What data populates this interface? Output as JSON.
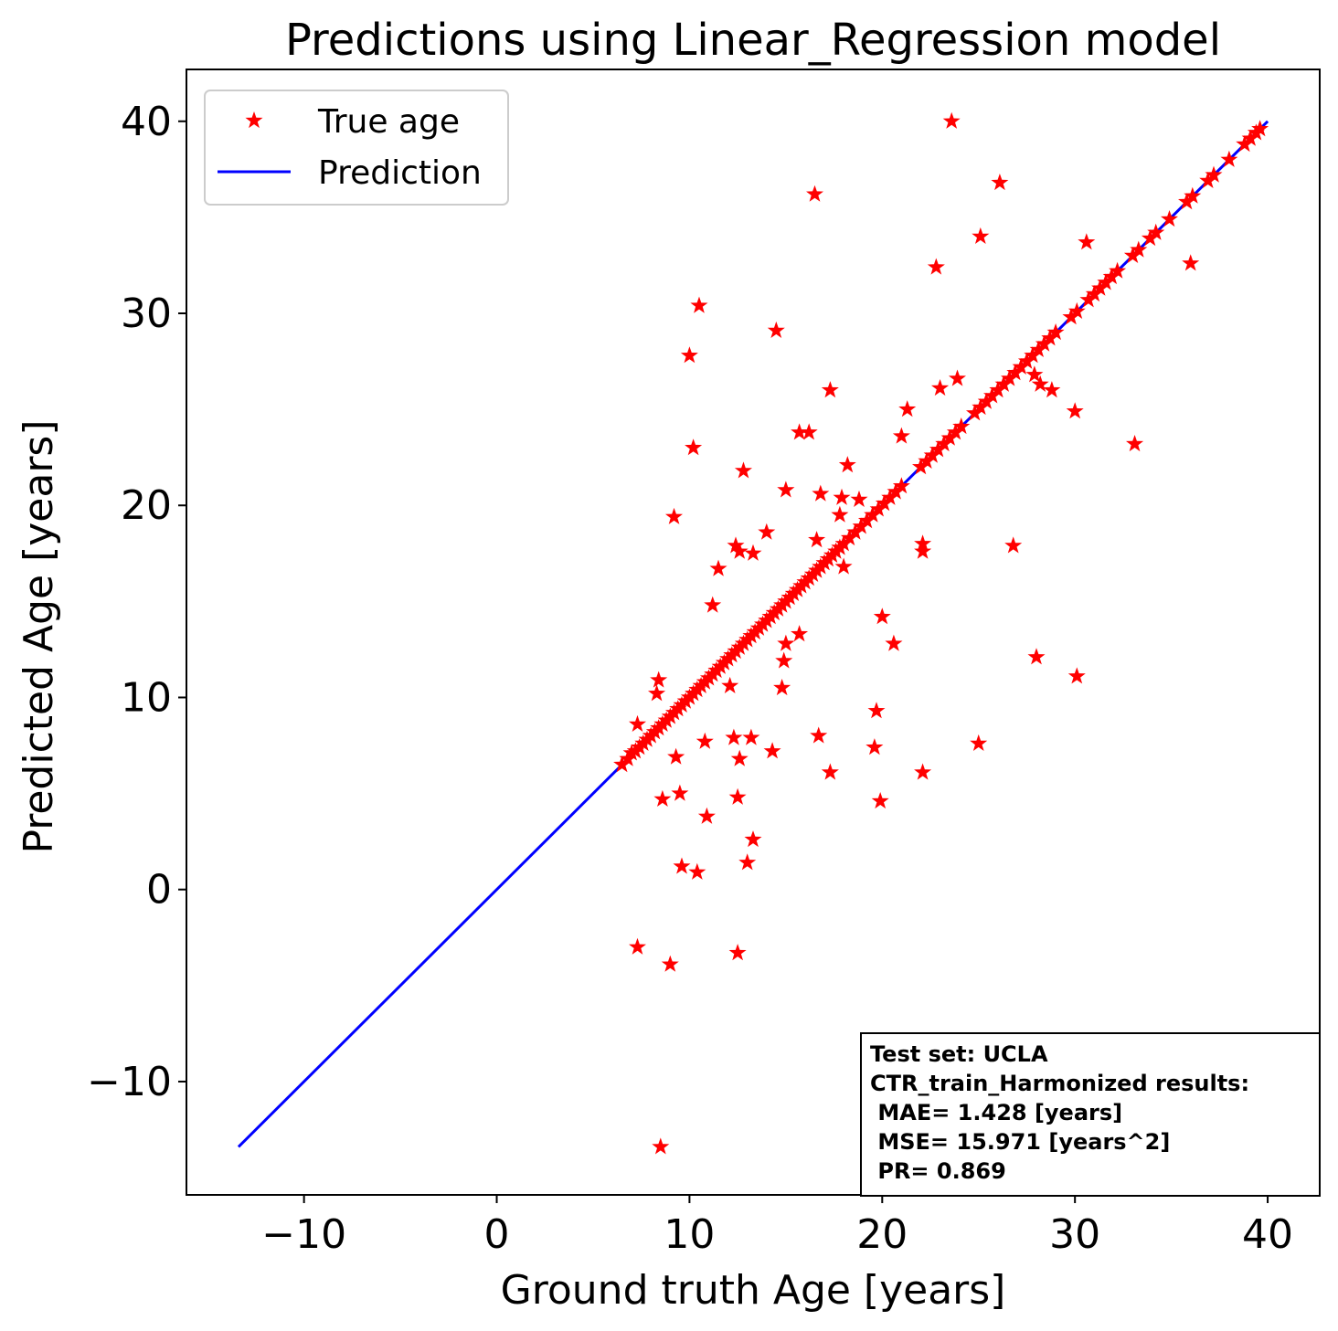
{
  "chart_data": {
    "type": "scatter",
    "title": "Predictions using Linear_Regression model",
    "xlabel": "Ground truth Age [years]",
    "ylabel": "Predicted Age [years]",
    "xlim": [
      -16.1,
      42.7
    ],
    "ylim": [
      -15.9,
      42.7
    ],
    "xticks": [
      -10,
      0,
      10,
      20,
      30,
      40
    ],
    "yticks": [
      -10,
      0,
      10,
      20,
      30,
      40
    ],
    "xtick_labels": [
      "−10",
      "0",
      "10",
      "20",
      "30",
      "40"
    ],
    "ytick_labels": [
      "−10",
      "0",
      "10",
      "20",
      "30",
      "40"
    ],
    "grid": false,
    "legend": {
      "position": "top-left",
      "entries": [
        {
          "label": "True age",
          "marker": "star",
          "color": "#ff0000"
        },
        {
          "label": "Prediction",
          "marker": "line",
          "color": "#0000ff"
        }
      ]
    },
    "colors": {
      "points": "#ff0000",
      "line": "#0000ff"
    },
    "series": [
      {
        "name": "True age",
        "kind": "scatter",
        "points": [
          [
            6.5,
            6.5
          ],
          [
            6.8,
            6.8
          ],
          [
            7.0,
            7.1
          ],
          [
            7.2,
            7.2
          ],
          [
            7.4,
            7.4
          ],
          [
            7.6,
            7.6
          ],
          [
            7.8,
            7.8
          ],
          [
            8.0,
            8.0
          ],
          [
            8.2,
            8.2
          ],
          [
            8.4,
            8.4
          ],
          [
            8.6,
            8.6
          ],
          [
            8.8,
            8.8
          ],
          [
            9.0,
            9.0
          ],
          [
            9.2,
            9.2
          ],
          [
            9.4,
            9.4
          ],
          [
            9.6,
            9.6
          ],
          [
            9.8,
            9.8
          ],
          [
            10.0,
            10.0
          ],
          [
            10.2,
            10.2
          ],
          [
            10.4,
            10.4
          ],
          [
            10.6,
            10.6
          ],
          [
            10.8,
            10.8
          ],
          [
            11.0,
            11.0
          ],
          [
            11.2,
            11.2
          ],
          [
            11.4,
            11.4
          ],
          [
            11.6,
            11.6
          ],
          [
            11.8,
            11.8
          ],
          [
            12.0,
            12.0
          ],
          [
            12.2,
            12.2
          ],
          [
            12.4,
            12.4
          ],
          [
            12.6,
            12.6
          ],
          [
            12.8,
            12.8
          ],
          [
            13.0,
            13.0
          ],
          [
            13.2,
            13.2
          ],
          [
            13.4,
            13.4
          ],
          [
            13.6,
            13.6
          ],
          [
            13.8,
            13.8
          ],
          [
            14.0,
            14.0
          ],
          [
            14.2,
            14.2
          ],
          [
            14.4,
            14.4
          ],
          [
            14.6,
            14.6
          ],
          [
            14.8,
            14.8
          ],
          [
            15.0,
            15.0
          ],
          [
            15.2,
            15.2
          ],
          [
            15.4,
            15.4
          ],
          [
            15.6,
            15.6
          ],
          [
            15.8,
            15.8
          ],
          [
            16.0,
            16.0
          ],
          [
            16.2,
            16.2
          ],
          [
            16.4,
            16.4
          ],
          [
            16.6,
            16.6
          ],
          [
            16.8,
            16.8
          ],
          [
            17.0,
            17.0
          ],
          [
            17.2,
            17.2
          ],
          [
            17.4,
            17.4
          ],
          [
            17.6,
            17.6
          ],
          [
            17.8,
            17.8
          ],
          [
            18.0,
            18.0
          ],
          [
            18.3,
            18.3
          ],
          [
            18.6,
            18.6
          ],
          [
            18.9,
            18.9
          ],
          [
            19.2,
            19.2
          ],
          [
            19.5,
            19.5
          ],
          [
            19.8,
            19.8
          ],
          [
            20.1,
            20.1
          ],
          [
            20.4,
            20.4
          ],
          [
            20.7,
            20.7
          ],
          [
            21.0,
            21.0
          ],
          [
            22.0,
            22.0
          ],
          [
            22.3,
            22.3
          ],
          [
            22.6,
            22.6
          ],
          [
            22.9,
            22.9
          ],
          [
            23.2,
            23.2
          ],
          [
            23.5,
            23.5
          ],
          [
            23.8,
            23.8
          ],
          [
            24.1,
            24.1
          ],
          [
            24.8,
            24.8
          ],
          [
            25.1,
            25.1
          ],
          [
            25.4,
            25.4
          ],
          [
            25.7,
            25.7
          ],
          [
            26.0,
            26.0
          ],
          [
            26.3,
            26.3
          ],
          [
            26.6,
            26.6
          ],
          [
            26.9,
            26.9
          ],
          [
            27.2,
            27.2
          ],
          [
            27.5,
            27.5
          ],
          [
            27.8,
            27.8
          ],
          [
            28.1,
            28.1
          ],
          [
            28.4,
            28.4
          ],
          [
            28.7,
            28.7
          ],
          [
            29.0,
            29.0
          ],
          [
            29.8,
            29.8
          ],
          [
            30.1,
            30.1
          ],
          [
            30.7,
            30.7
          ],
          [
            31.0,
            31.0
          ],
          [
            31.3,
            31.3
          ],
          [
            31.6,
            31.6
          ],
          [
            31.9,
            31.9
          ],
          [
            32.2,
            32.2
          ],
          [
            33.0,
            33.0
          ],
          [
            33.3,
            33.3
          ],
          [
            33.9,
            33.9
          ],
          [
            34.2,
            34.2
          ],
          [
            34.9,
            34.9
          ],
          [
            35.8,
            35.8
          ],
          [
            36.1,
            36.1
          ],
          [
            36.9,
            36.9
          ],
          [
            37.2,
            37.2
          ],
          [
            38.0,
            38.0
          ],
          [
            38.8,
            38.8
          ],
          [
            39.1,
            39.1
          ],
          [
            39.4,
            39.4
          ],
          [
            39.6,
            39.6
          ],
          [
            7.3,
            8.6
          ],
          [
            8.3,
            10.2
          ],
          [
            8.4,
            10.9
          ],
          [
            8.6,
            4.7
          ],
          [
            9.2,
            19.4
          ],
          [
            9.3,
            6.9
          ],
          [
            9.5,
            5.0
          ],
          [
            9.6,
            1.2
          ],
          [
            10.0,
            27.8
          ],
          [
            10.2,
            23.0
          ],
          [
            10.4,
            0.9
          ],
          [
            10.5,
            30.4
          ],
          [
            10.8,
            7.7
          ],
          [
            10.9,
            3.8
          ],
          [
            11.2,
            14.8
          ],
          [
            11.5,
            16.7
          ],
          [
            12.1,
            10.6
          ],
          [
            12.3,
            7.9
          ],
          [
            12.4,
            17.9
          ],
          [
            12.5,
            4.8
          ],
          [
            12.5,
            -3.3
          ],
          [
            12.6,
            6.8
          ],
          [
            12.6,
            17.6
          ],
          [
            12.8,
            21.8
          ],
          [
            13.0,
            1.4
          ],
          [
            13.2,
            7.9
          ],
          [
            13.3,
            17.5
          ],
          [
            13.3,
            2.6
          ],
          [
            14.0,
            18.6
          ],
          [
            14.3,
            7.2
          ],
          [
            14.5,
            29.1
          ],
          [
            14.8,
            10.5
          ],
          [
            14.9,
            11.9
          ],
          [
            15.0,
            12.8
          ],
          [
            15.0,
            20.8
          ],
          [
            15.7,
            23.8
          ],
          [
            15.7,
            13.3
          ],
          [
            16.2,
            23.8
          ],
          [
            16.5,
            36.2
          ],
          [
            16.6,
            18.2
          ],
          [
            16.7,
            8.0
          ],
          [
            16.8,
            20.6
          ],
          [
            17.3,
            26.0
          ],
          [
            17.3,
            6.1
          ],
          [
            17.8,
            19.5
          ],
          [
            17.9,
            20.4
          ],
          [
            18.0,
            16.8
          ],
          [
            18.2,
            22.1
          ],
          [
            18.8,
            20.3
          ],
          [
            19.6,
            7.4
          ],
          [
            19.7,
            9.3
          ],
          [
            19.9,
            4.6
          ],
          [
            20.0,
            14.2
          ],
          [
            20.6,
            12.8
          ],
          [
            21.0,
            23.6
          ],
          [
            21.3,
            25.0
          ],
          [
            22.1,
            17.6
          ],
          [
            22.1,
            18.0
          ],
          [
            22.1,
            6.1
          ],
          [
            22.8,
            32.4
          ],
          [
            23.0,
            26.1
          ],
          [
            23.6,
            40.0
          ],
          [
            23.9,
            26.6
          ],
          [
            25.0,
            7.6
          ],
          [
            25.1,
            34.0
          ],
          [
            26.1,
            36.8
          ],
          [
            26.8,
            17.9
          ],
          [
            27.9,
            26.8
          ],
          [
            28.0,
            12.1
          ],
          [
            28.2,
            26.3
          ],
          [
            28.8,
            26.0
          ],
          [
            30.0,
            24.9
          ],
          [
            30.1,
            11.1
          ],
          [
            30.6,
            33.7
          ],
          [
            33.1,
            23.2
          ],
          [
            36.0,
            32.6
          ],
          [
            7.3,
            -3.0
          ],
          [
            9.0,
            -3.9
          ],
          [
            8.5,
            -13.4
          ]
        ]
      },
      {
        "name": "Prediction",
        "kind": "line",
        "points": [
          [
            -13.4,
            -13.4
          ],
          [
            40.0,
            40.0
          ]
        ]
      }
    ]
  },
  "stats_box": {
    "lines": [
      "Test set: UCLA",
      "CTR_train_Harmonized results:",
      " MAE= 1.428 [years]",
      " MSE= 15.971 [years^2]",
      " PR= 0.869"
    ]
  }
}
